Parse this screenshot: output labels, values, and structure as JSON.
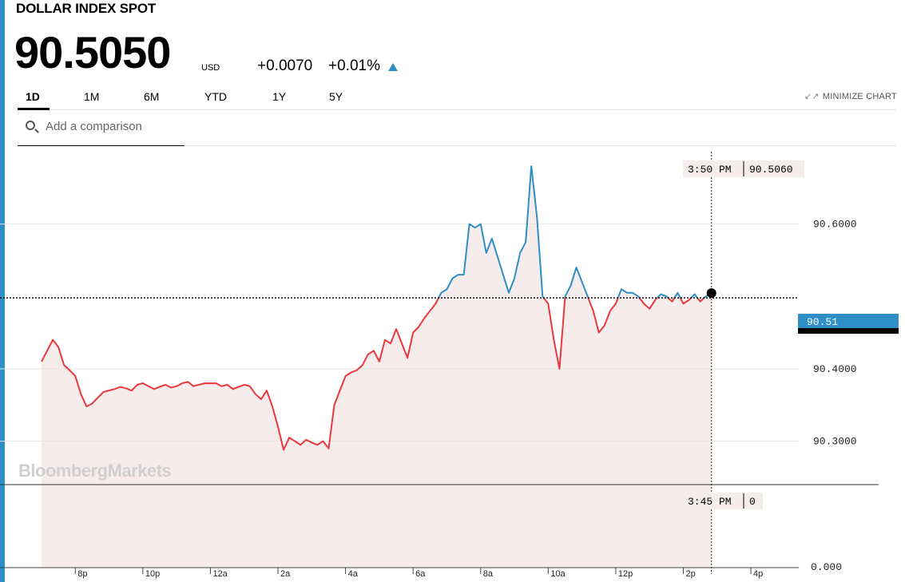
{
  "header": {
    "title": "DOLLAR INDEX SPOT",
    "price": "90.5050",
    "currency": "USD",
    "change": "+0.0070",
    "change_pct": "+0.01%",
    "direction_icon": "triangle-up-icon"
  },
  "tabs": [
    {
      "label": "1D",
      "active": true
    },
    {
      "label": "1M",
      "active": false
    },
    {
      "label": "6M",
      "active": false
    },
    {
      "label": "YTD",
      "active": false
    },
    {
      "label": "1Y",
      "active": false
    },
    {
      "label": "5Y",
      "active": false
    }
  ],
  "minimize": {
    "label": "MINIMIZE CHART",
    "icon": "collapse-arrows-icon"
  },
  "search": {
    "placeholder": "Add a comparison",
    "value": "",
    "icon": "search-icon"
  },
  "watermark": "BloombergMarkets",
  "colors": {
    "up": "#2e8fc6",
    "down": "#e8383b",
    "fill": "#f7ecec",
    "accent": "#2e8fc6"
  },
  "chart_data": {
    "type": "line",
    "series": [
      {
        "values": [
          [
            "19:00",
            90.41
          ],
          [
            "19:10",
            90.425
          ],
          [
            "19:20",
            90.44
          ],
          [
            "19:30",
            90.43
          ],
          [
            "19:40",
            90.405
          ],
          [
            "19:50",
            90.398
          ],
          [
            "20:00",
            90.39
          ],
          [
            "20:10",
            90.365
          ],
          [
            "20:20",
            90.348
          ],
          [
            "20:30",
            90.352
          ],
          [
            "20:40",
            90.36
          ],
          [
            "20:50",
            90.368
          ],
          [
            "21:00",
            90.37
          ],
          [
            "21:10",
            90.372
          ],
          [
            "21:20",
            90.375
          ],
          [
            "21:30",
            90.373
          ],
          [
            "21:40",
            90.37
          ],
          [
            "21:50",
            90.378
          ],
          [
            "22:00",
            90.38
          ],
          [
            "22:10",
            90.376
          ],
          [
            "22:20",
            90.372
          ],
          [
            "22:30",
            90.375
          ],
          [
            "22:40",
            90.378
          ],
          [
            "22:50",
            90.374
          ],
          [
            "23:00",
            90.376
          ],
          [
            "23:10",
            90.38
          ],
          [
            "23:20",
            90.382
          ],
          [
            "23:30",
            90.376
          ],
          [
            "23:40",
            90.378
          ],
          [
            "23:50",
            90.38
          ],
          [
            "00:00",
            90.38
          ],
          [
            "00:10",
            90.38
          ],
          [
            "00:20",
            90.376
          ],
          [
            "00:30",
            90.378
          ],
          [
            "00:40",
            90.372
          ],
          [
            "00:50",
            90.375
          ],
          [
            "01:00",
            90.378
          ],
          [
            "01:10",
            90.376
          ],
          [
            "01:20",
            90.365
          ],
          [
            "01:30",
            90.358
          ],
          [
            "01:40",
            90.37
          ],
          [
            "01:50",
            90.348
          ],
          [
            "02:00",
            90.32
          ],
          [
            "02:10",
            90.288
          ],
          [
            "02:20",
            90.305
          ],
          [
            "02:30",
            90.3
          ],
          [
            "02:40",
            90.295
          ],
          [
            "02:50",
            90.302
          ],
          [
            "03:00",
            90.298
          ],
          [
            "03:10",
            90.295
          ],
          [
            "03:20",
            90.3
          ],
          [
            "03:30",
            90.29
          ],
          [
            "03:40",
            90.35
          ],
          [
            "03:50",
            90.37
          ],
          [
            "04:00",
            90.39
          ],
          [
            "04:10",
            90.395
          ],
          [
            "04:20",
            90.398
          ],
          [
            "04:30",
            90.405
          ],
          [
            "04:40",
            90.42
          ],
          [
            "04:50",
            90.425
          ],
          [
            "05:00",
            90.41
          ],
          [
            "05:10",
            90.44
          ],
          [
            "05:20",
            90.435
          ],
          [
            "05:30",
            90.455
          ],
          [
            "05:40",
            90.435
          ],
          [
            "05:50",
            90.415
          ],
          [
            "06:00",
            90.45
          ],
          [
            "06:10",
            90.458
          ],
          [
            "06:20",
            90.47
          ],
          [
            "06:30",
            90.48
          ],
          [
            "06:40",
            90.49
          ],
          [
            "06:50",
            90.505
          ],
          [
            "07:00",
            90.51
          ],
          [
            "07:10",
            90.525
          ],
          [
            "07:20",
            90.53
          ],
          [
            "07:30",
            90.53
          ],
          [
            "07:40",
            90.6
          ],
          [
            "07:50",
            90.595
          ],
          [
            "08:00",
            90.6
          ],
          [
            "08:10",
            90.56
          ],
          [
            "08:20",
            90.58
          ],
          [
            "08:30",
            90.555
          ],
          [
            "08:40",
            90.53
          ],
          [
            "08:50",
            90.505
          ],
          [
            "09:00",
            90.525
          ],
          [
            "09:10",
            90.56
          ],
          [
            "09:20",
            90.575
          ],
          [
            "09:30",
            90.68
          ],
          [
            "09:40",
            90.61
          ],
          [
            "09:50",
            90.5
          ],
          [
            "10:00",
            90.49
          ],
          [
            "10:10",
            90.44
          ],
          [
            "10:20",
            90.4
          ],
          [
            "10:30",
            90.5
          ],
          [
            "10:40",
            90.515
          ],
          [
            "10:50",
            90.54
          ],
          [
            "11:00",
            90.52
          ],
          [
            "11:10",
            90.5
          ],
          [
            "11:20",
            90.48
          ],
          [
            "11:30",
            90.45
          ],
          [
            "11:40",
            90.46
          ],
          [
            "11:50",
            90.48
          ],
          [
            "12:00",
            90.49
          ],
          [
            "12:10",
            90.51
          ],
          [
            "12:20",
            90.505
          ],
          [
            "12:30",
            90.505
          ],
          [
            "12:40",
            90.5
          ],
          [
            "12:50",
            90.49
          ],
          [
            "13:00",
            90.483
          ],
          [
            "13:10",
            90.495
          ],
          [
            "13:20",
            90.503
          ],
          [
            "13:30",
            90.5
          ],
          [
            "13:40",
            90.493
          ],
          [
            "13:50",
            90.505
          ],
          [
            "14:00",
            90.49
          ],
          [
            "14:10",
            90.495
          ],
          [
            "14:20",
            90.503
          ],
          [
            "14:30",
            90.493
          ],
          [
            "14:40",
            90.5
          ],
          [
            "14:50",
            90.505
          ]
        ]
      }
    ],
    "reference_line": 90.498,
    "x_ticks": [
      "8p",
      "10p",
      "12a",
      "2a",
      "4a",
      "6a",
      "8a",
      "10a",
      "12p",
      "2p",
      "4p"
    ],
    "y_ticks": [
      "90.6000",
      "90.4000",
      "90.3000"
    ],
    "volume_axis_tick": "0.000",
    "crosshair": {
      "time_label": "3:50 PM",
      "price_label": "90.5060",
      "volume_time_label": "3:45 PM",
      "volume_label": "0"
    },
    "last_price_label": "90.51",
    "ylim": [
      90.24,
      90.7
    ]
  }
}
